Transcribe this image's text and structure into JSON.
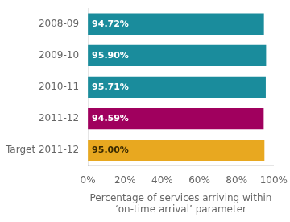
{
  "chart_data": {
    "type": "bar",
    "orientation": "horizontal",
    "categories": [
      "2008-09",
      "2009-10",
      "2010-11",
      "2011-12",
      "Target 2011-12"
    ],
    "values": [
      94.72,
      95.9,
      95.71,
      94.59,
      95.0
    ],
    "value_labels": [
      "94.72%",
      "95.90%",
      "95.71%",
      "94.59%",
      "95.00%"
    ],
    "data_labels": true,
    "colors": [
      "#1A8C9C",
      "#1A8C9C",
      "#1A8C9C",
      "#A0005E",
      "#E8A820"
    ],
    "xlabel": "Percentage of services arriving within\n‘on-time arrival’ parameter",
    "xlim": [
      0,
      100
    ],
    "xticks": [
      {
        "value": 0,
        "label": "0%"
      },
      {
        "value": 20,
        "label": "20%"
      },
      {
        "value": 40,
        "label": "40%"
      },
      {
        "value": 60,
        "label": "60%"
      },
      {
        "value": 80,
        "label": "80%"
      },
      {
        "value": 100,
        "label": "100%"
      }
    ],
    "grid": false
  }
}
